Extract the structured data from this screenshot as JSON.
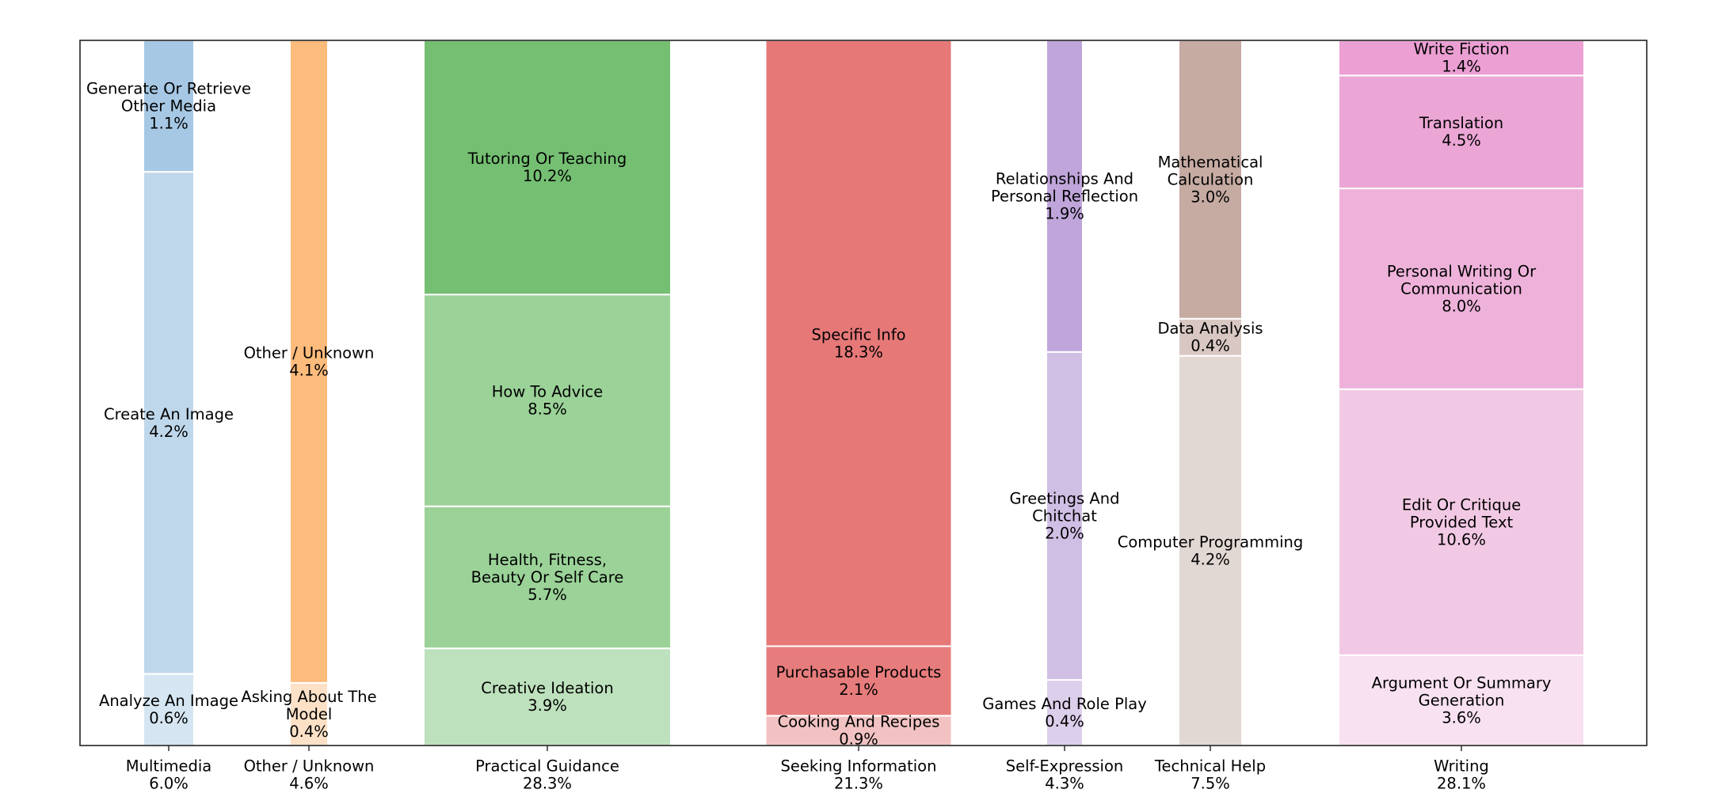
{
  "chart_data": {
    "type": "bar",
    "subtype": "stacked-variable-width",
    "ylim": [
      0,
      100
    ],
    "grid": false,
    "legend": "none",
    "categories": [
      {
        "name": "Multimedia",
        "total": "6.0%",
        "segments": [
          {
            "label": "Analyze An Image",
            "value": 0.6,
            "pct": "0.6%",
            "color": "#d5e6f2"
          },
          {
            "label": "Create An Image",
            "value": 4.2,
            "pct": "4.2%",
            "color": "#bfd7ea"
          },
          {
            "label": "Generate Or Retrieve Other Media",
            "value": 1.1,
            "pct": "1.1%",
            "color": "#a6c8e4"
          }
        ]
      },
      {
        "name": "Other / Unknown",
        "total": "4.6%",
        "segments": [
          {
            "label": "Asking About The Model",
            "value": 0.4,
            "pct": "0.4%",
            "color": "#fde1c7"
          },
          {
            "label": "Other / Unknown",
            "value": 4.1,
            "pct": "4.1%",
            "color": "#fdbb7c"
          }
        ]
      },
      {
        "name": "Practical Guidance",
        "total": "28.3%",
        "segments": [
          {
            "label": "Creative Ideation",
            "value": 3.9,
            "pct": "3.9%",
            "color": "#bde1bc"
          },
          {
            "label": "Health, Fitness, Beauty Or Self Care",
            "value": 5.7,
            "pct": "5.7%",
            "color": "#9bd298"
          },
          {
            "label": "How To Advice",
            "value": 8.5,
            "pct": "8.5%",
            "color": "#9bd298"
          },
          {
            "label": "Tutoring Or Teaching",
            "value": 10.2,
            "pct": "10.2%",
            "color": "#74bf72"
          }
        ]
      },
      {
        "name": "Seeking Information",
        "total": "21.3%",
        "segments": [
          {
            "label": "Cooking And Recipes",
            "value": 0.9,
            "pct": "0.9%",
            "color": "#f2c2c2"
          },
          {
            "label": "Purchasable Products",
            "value": 2.1,
            "pct": "2.1%",
            "color": "#e77c7c"
          },
          {
            "label": "Specific Info",
            "value": 18.3,
            "pct": "18.3%",
            "color": "#e67878"
          }
        ]
      },
      {
        "name": "Self-Expression",
        "total": "4.3%",
        "segments": [
          {
            "label": "Games And Role Play",
            "value": 0.4,
            "pct": "0.4%",
            "color": "#dccfeb"
          },
          {
            "label": "Greetings And Chitchat",
            "value": 2.0,
            "pct": "2.0%",
            "color": "#d0bfe5"
          },
          {
            "label": "Relationships And Personal Reflection",
            "value": 1.9,
            "pct": "1.9%",
            "color": "#bfa5da"
          }
        ]
      },
      {
        "name": "Technical Help",
        "total": "7.5%",
        "segments": [
          {
            "label": "Computer Programming",
            "value": 4.2,
            "pct": "4.2%",
            "color": "#e1d7d3"
          },
          {
            "label": "Data Analysis",
            "value": 0.4,
            "pct": "0.4%",
            "color": "#d8c7c2"
          },
          {
            "label": "Mathematical Calculation",
            "value": 3.0,
            "pct": "3.0%",
            "color": "#c6aba3"
          }
        ]
      },
      {
        "name": "Writing",
        "total": "28.1%",
        "segments": [
          {
            "label": "Argument Or Summary Generation",
            "value": 3.6,
            "pct": "3.6%",
            "color": "#f8e1f0"
          },
          {
            "label": "Edit Or Critique Provided Text",
            "value": 10.6,
            "pct": "10.6%",
            "color": "#f2c9e4"
          },
          {
            "label": "Personal Writing Or Communication",
            "value": 8.0,
            "pct": "8.0%",
            "color": "#eeb2da"
          },
          {
            "label": "Translation",
            "value": 4.5,
            "pct": "4.5%",
            "color": "#eba6d5"
          },
          {
            "label": "Write Fiction",
            "value": 1.4,
            "pct": "1.4%",
            "color": "#eb9fd3"
          }
        ]
      }
    ]
  }
}
